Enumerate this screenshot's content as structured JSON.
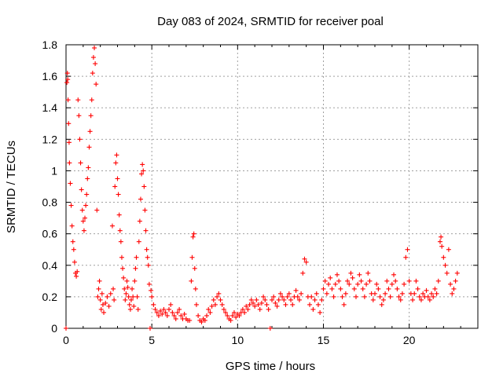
{
  "chart_data": {
    "type": "scatter",
    "title": "Day 083 of 2024, SRMTID for receiver poal",
    "xlabel": "GPS time / hours",
    "ylabel": "SRMTID / TECUs",
    "xlim": [
      0,
      24
    ],
    "ylim": [
      0,
      1.8
    ],
    "grid": true,
    "marker": "+",
    "series_color": "#ff0000",
    "x_ticks": [
      {
        "value": 0,
        "label": "0"
      },
      {
        "value": 5,
        "label": "5"
      },
      {
        "value": 10,
        "label": "10"
      },
      {
        "value": 15,
        "label": "15"
      },
      {
        "value": 20,
        "label": "20"
      }
    ],
    "y_ticks": [
      {
        "value": 0,
        "label": "0"
      },
      {
        "value": 0.2,
        "label": "0.2"
      },
      {
        "value": 0.4,
        "label": "0.4"
      },
      {
        "value": 0.6,
        "label": "0.6"
      },
      {
        "value": 0.8,
        "label": "0.8"
      },
      {
        "value": 1.0,
        "label": "1"
      },
      {
        "value": 1.2,
        "label": "1.2"
      },
      {
        "value": 1.4,
        "label": "1.4"
      },
      {
        "value": 1.6,
        "label": "1.6"
      },
      {
        "value": 1.8,
        "label": "1.8"
      }
    ],
    "series": [
      {
        "name": "SRMTID",
        "points": [
          [
            0.0,
            0.0
          ],
          [
            0.05,
            1.56
          ],
          [
            0.08,
            1.62
          ],
          [
            0.1,
            1.58
          ],
          [
            0.12,
            1.45
          ],
          [
            0.15,
            1.3
          ],
          [
            0.18,
            1.18
          ],
          [
            0.2,
            1.05
          ],
          [
            0.25,
            0.92
          ],
          [
            0.3,
            0.78
          ],
          [
            0.35,
            0.65
          ],
          [
            0.4,
            0.55
          ],
          [
            0.45,
            0.5
          ],
          [
            0.5,
            0.42
          ],
          [
            0.55,
            0.35
          ],
          [
            0.6,
            0.33
          ],
          [
            0.65,
            0.36
          ],
          [
            0.7,
            1.45
          ],
          [
            0.75,
            1.35
          ],
          [
            0.8,
            1.2
          ],
          [
            0.85,
            1.05
          ],
          [
            0.9,
            0.88
          ],
          [
            0.95,
            0.75
          ],
          [
            1.0,
            0.68
          ],
          [
            1.05,
            0.62
          ],
          [
            1.1,
            0.7
          ],
          [
            1.15,
            0.78
          ],
          [
            1.2,
            0.85
          ],
          [
            1.25,
            0.95
          ],
          [
            1.3,
            1.02
          ],
          [
            1.35,
            1.15
          ],
          [
            1.4,
            1.25
          ],
          [
            1.45,
            1.35
          ],
          [
            1.5,
            1.45
          ],
          [
            1.55,
            1.62
          ],
          [
            1.6,
            1.72
          ],
          [
            1.65,
            1.78
          ],
          [
            1.7,
            1.68
          ],
          [
            1.75,
            1.55
          ],
          [
            1.8,
            0.75
          ],
          [
            1.85,
            0.2
          ],
          [
            1.9,
            0.25
          ],
          [
            1.95,
            0.3
          ],
          [
            2.0,
            0.18
          ],
          [
            2.05,
            0.12
          ],
          [
            2.1,
            0.22
          ],
          [
            2.15,
            0.15
          ],
          [
            2.2,
            0.1
          ],
          [
            2.3,
            0.16
          ],
          [
            2.4,
            0.2
          ],
          [
            2.5,
            0.14
          ],
          [
            2.6,
            0.22
          ],
          [
            2.7,
            0.65
          ],
          [
            2.75,
            0.25
          ],
          [
            2.8,
            0.18
          ],
          [
            2.85,
            0.9
          ],
          [
            2.9,
            1.05
          ],
          [
            2.95,
            1.1
          ],
          [
            3.0,
            0.95
          ],
          [
            3.05,
            0.85
          ],
          [
            3.1,
            0.72
          ],
          [
            3.15,
            0.62
          ],
          [
            3.2,
            0.55
          ],
          [
            3.25,
            0.45
          ],
          [
            3.3,
            0.38
          ],
          [
            3.35,
            0.32
          ],
          [
            3.4,
            0.25
          ],
          [
            3.45,
            0.18
          ],
          [
            3.5,
            0.22
          ],
          [
            3.55,
            0.3
          ],
          [
            3.6,
            0.26
          ],
          [
            3.65,
            0.2
          ],
          [
            3.7,
            0.15
          ],
          [
            3.75,
            0.12
          ],
          [
            3.8,
            0.18
          ],
          [
            3.85,
            0.25
          ],
          [
            3.9,
            0.2
          ],
          [
            3.95,
            0.14
          ],
          [
            4.0,
            0.3
          ],
          [
            4.05,
            0.38
          ],
          [
            4.1,
            0.45
          ],
          [
            4.15,
            0.2
          ],
          [
            4.2,
            0.12
          ],
          [
            4.25,
            0.55
          ],
          [
            4.3,
            0.68
          ],
          [
            4.35,
            0.82
          ],
          [
            4.4,
            0.98
          ],
          [
            4.45,
            1.04
          ],
          [
            4.5,
            1.0
          ],
          [
            4.55,
            0.9
          ],
          [
            4.6,
            0.75
          ],
          [
            4.65,
            0.62
          ],
          [
            4.7,
            0.5
          ],
          [
            4.75,
            0.45
          ],
          [
            4.8,
            0.4
          ],
          [
            4.85,
            0.28
          ],
          [
            4.9,
            0.0
          ],
          [
            4.95,
            0.24
          ],
          [
            5.0,
            0.2
          ],
          [
            5.1,
            0.15
          ],
          [
            5.2,
            0.12
          ],
          [
            5.3,
            0.1
          ],
          [
            5.4,
            0.08
          ],
          [
            5.5,
            0.11
          ],
          [
            5.6,
            0.09
          ],
          [
            5.7,
            0.12
          ],
          [
            5.8,
            0.1
          ],
          [
            5.9,
            0.08
          ],
          [
            6.0,
            0.12
          ],
          [
            6.1,
            0.15
          ],
          [
            6.2,
            0.1
          ],
          [
            6.3,
            0.08
          ],
          [
            6.4,
            0.06
          ],
          [
            6.5,
            0.1
          ],
          [
            6.6,
            0.12
          ],
          [
            6.7,
            0.08
          ],
          [
            6.8,
            0.06
          ],
          [
            6.9,
            0.09
          ],
          [
            7.0,
            0.06
          ],
          [
            7.1,
            0.05
          ],
          [
            7.2,
            0.05
          ],
          [
            7.3,
            0.3
          ],
          [
            7.35,
            0.45
          ],
          [
            7.4,
            0.58
          ],
          [
            7.45,
            0.6
          ],
          [
            7.5,
            0.38
          ],
          [
            7.55,
            0.25
          ],
          [
            7.6,
            0.15
          ],
          [
            7.7,
            0.08
          ],
          [
            7.8,
            0.05
          ],
          [
            7.9,
            0.04
          ],
          [
            8.0,
            0.06
          ],
          [
            8.1,
            0.05
          ],
          [
            8.2,
            0.08
          ],
          [
            8.3,
            0.12
          ],
          [
            8.4,
            0.1
          ],
          [
            8.5,
            0.14
          ],
          [
            8.6,
            0.18
          ],
          [
            8.7,
            0.15
          ],
          [
            8.8,
            0.2
          ],
          [
            8.9,
            0.22
          ],
          [
            9.0,
            0.18
          ],
          [
            9.1,
            0.15
          ],
          [
            9.2,
            0.12
          ],
          [
            9.3,
            0.1
          ],
          [
            9.4,
            0.08
          ],
          [
            9.5,
            0.06
          ],
          [
            9.6,
            0.05
          ],
          [
            9.7,
            0.08
          ],
          [
            9.8,
            0.1
          ],
          [
            9.9,
            0.07
          ],
          [
            10.0,
            0.09
          ],
          [
            10.1,
            0.08
          ],
          [
            10.2,
            0.1
          ],
          [
            10.3,
            0.12
          ],
          [
            10.4,
            0.1
          ],
          [
            10.5,
            0.14
          ],
          [
            10.6,
            0.12
          ],
          [
            10.7,
            0.15
          ],
          [
            10.8,
            0.18
          ],
          [
            10.9,
            0.16
          ],
          [
            11.0,
            0.14
          ],
          [
            11.1,
            0.18
          ],
          [
            11.2,
            0.15
          ],
          [
            11.3,
            0.12
          ],
          [
            11.4,
            0.16
          ],
          [
            11.5,
            0.2
          ],
          [
            11.6,
            0.18
          ],
          [
            11.7,
            0.15
          ],
          [
            11.8,
            0.12
          ],
          [
            11.9,
            0.0
          ],
          [
            12.0,
            0.18
          ],
          [
            12.1,
            0.2
          ],
          [
            12.2,
            0.16
          ],
          [
            12.3,
            0.14
          ],
          [
            12.4,
            0.18
          ],
          [
            12.5,
            0.22
          ],
          [
            12.6,
            0.2
          ],
          [
            12.7,
            0.18
          ],
          [
            12.8,
            0.15
          ],
          [
            12.9,
            0.2
          ],
          [
            13.0,
            0.22
          ],
          [
            13.1,
            0.18
          ],
          [
            13.2,
            0.15
          ],
          [
            13.3,
            0.2
          ],
          [
            13.4,
            0.24
          ],
          [
            13.5,
            0.2
          ],
          [
            13.6,
            0.18
          ],
          [
            13.7,
            0.22
          ],
          [
            13.8,
            0.35
          ],
          [
            13.9,
            0.44
          ],
          [
            14.0,
            0.42
          ],
          [
            14.1,
            0.2
          ],
          [
            14.2,
            0.15
          ],
          [
            14.3,
            0.2
          ],
          [
            14.4,
            0.12
          ],
          [
            14.5,
            0.18
          ],
          [
            14.6,
            0.22
          ],
          [
            14.7,
            0.15
          ],
          [
            14.8,
            0.1
          ],
          [
            14.9,
            0.18
          ],
          [
            15.0,
            0.25
          ],
          [
            15.1,
            0.3
          ],
          [
            15.2,
            0.22
          ],
          [
            15.3,
            0.28
          ],
          [
            15.4,
            0.32
          ],
          [
            15.5,
            0.25
          ],
          [
            15.6,
            0.2
          ],
          [
            15.7,
            0.28
          ],
          [
            15.8,
            0.34
          ],
          [
            15.9,
            0.3
          ],
          [
            16.0,
            0.25
          ],
          [
            16.1,
            0.2
          ],
          [
            16.2,
            0.15
          ],
          [
            16.3,
            0.22
          ],
          [
            16.4,
            0.3
          ],
          [
            16.5,
            0.28
          ],
          [
            16.6,
            0.35
          ],
          [
            16.7,
            0.32
          ],
          [
            16.8,
            0.25
          ],
          [
            16.9,
            0.2
          ],
          [
            17.0,
            0.28
          ],
          [
            17.1,
            0.34
          ],
          [
            17.2,
            0.3
          ],
          [
            17.3,
            0.25
          ],
          [
            17.4,
            0.2
          ],
          [
            17.5,
            0.28
          ],
          [
            17.6,
            0.35
          ],
          [
            17.7,
            0.3
          ],
          [
            17.8,
            0.22
          ],
          [
            17.9,
            0.18
          ],
          [
            18.0,
            0.22
          ],
          [
            18.1,
            0.28
          ],
          [
            18.2,
            0.25
          ],
          [
            18.3,
            0.2
          ],
          [
            18.4,
            0.15
          ],
          [
            18.5,
            0.18
          ],
          [
            18.6,
            0.22
          ],
          [
            18.7,
            0.3
          ],
          [
            18.8,
            0.25
          ],
          [
            18.9,
            0.2
          ],
          [
            19.0,
            0.28
          ],
          [
            19.1,
            0.34
          ],
          [
            19.2,
            0.3
          ],
          [
            19.3,
            0.25
          ],
          [
            19.4,
            0.2
          ],
          [
            19.5,
            0.18
          ],
          [
            19.6,
            0.22
          ],
          [
            19.7,
            0.28
          ],
          [
            19.8,
            0.45
          ],
          [
            19.9,
            0.5
          ],
          [
            20.0,
            0.3
          ],
          [
            20.1,
            0.22
          ],
          [
            20.2,
            0.18
          ],
          [
            20.3,
            0.22
          ],
          [
            20.4,
            0.3
          ],
          [
            20.5,
            0.25
          ],
          [
            20.6,
            0.2
          ],
          [
            20.7,
            0.18
          ],
          [
            20.8,
            0.22
          ],
          [
            20.9,
            0.2
          ],
          [
            21.0,
            0.24
          ],
          [
            21.1,
            0.2
          ],
          [
            21.2,
            0.18
          ],
          [
            21.3,
            0.22
          ],
          [
            21.4,
            0.2
          ],
          [
            21.5,
            0.25
          ],
          [
            21.6,
            0.22
          ],
          [
            21.7,
            0.3
          ],
          [
            21.8,
            0.55
          ],
          [
            21.85,
            0.58
          ],
          [
            21.9,
            0.52
          ],
          [
            22.0,
            0.45
          ],
          [
            22.1,
            0.4
          ],
          [
            22.2,
            0.35
          ],
          [
            22.3,
            0.5
          ],
          [
            22.4,
            0.28
          ],
          [
            22.5,
            0.22
          ],
          [
            22.6,
            0.25
          ],
          [
            22.7,
            0.3
          ],
          [
            22.8,
            0.35
          ]
        ]
      }
    ]
  }
}
